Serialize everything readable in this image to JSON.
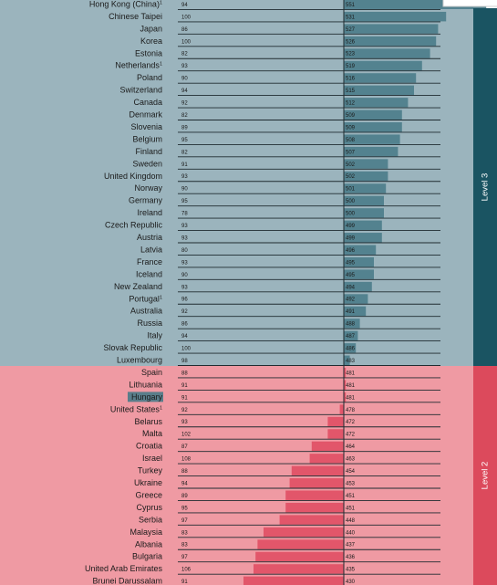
{
  "chart_data": {
    "type": "bar",
    "title": "",
    "xlabel": "",
    "ylabel": "",
    "baseline": 480,
    "levels": [
      {
        "name": "Level 3",
        "color": "#1a5462",
        "rows_bg": "#9bb4bd"
      },
      {
        "name": "Level 2",
        "color": "#dc4a5c",
        "rows_bg": "#ef9aa3"
      }
    ],
    "highlight": "Hungary",
    "rows": [
      {
        "country": "Hong Kong (China)",
        "sup": "1",
        "coverage": 94,
        "score": 551,
        "level": 0
      },
      {
        "country": "Chinese Taipei",
        "sup": "",
        "coverage": 100,
        "score": 531,
        "level": 0
      },
      {
        "country": "Japan",
        "sup": "",
        "coverage": 86,
        "score": 527,
        "level": 0
      },
      {
        "country": "Korea",
        "sup": "",
        "coverage": 100,
        "score": 526,
        "level": 0
      },
      {
        "country": "Estonia",
        "sup": "",
        "coverage": 82,
        "score": 523,
        "level": 0
      },
      {
        "country": "Netherlands",
        "sup": "1",
        "coverage": 93,
        "score": 519,
        "level": 0
      },
      {
        "country": "Poland",
        "sup": "",
        "coverage": 90,
        "score": 516,
        "level": 0
      },
      {
        "country": "Switzerland",
        "sup": "",
        "coverage": 94,
        "score": 515,
        "level": 0
      },
      {
        "country": "Canada",
        "sup": "",
        "coverage": 92,
        "score": 512,
        "level": 0
      },
      {
        "country": "Denmark",
        "sup": "",
        "coverage": 82,
        "score": 509,
        "level": 0
      },
      {
        "country": "Slovenia",
        "sup": "",
        "coverage": 89,
        "score": 509,
        "level": 0
      },
      {
        "country": "Belgium",
        "sup": "",
        "coverage": 95,
        "score": 508,
        "level": 0
      },
      {
        "country": "Finland",
        "sup": "",
        "coverage": 82,
        "score": 507,
        "level": 0
      },
      {
        "country": "Sweden",
        "sup": "",
        "coverage": 91,
        "score": 502,
        "level": 0
      },
      {
        "country": "United Kingdom",
        "sup": "",
        "coverage": 93,
        "score": 502,
        "level": 0
      },
      {
        "country": "Norway",
        "sup": "",
        "coverage": 90,
        "score": 501,
        "level": 0
      },
      {
        "country": "Germany",
        "sup": "",
        "coverage": 95,
        "score": 500,
        "level": 0
      },
      {
        "country": "Ireland",
        "sup": "",
        "coverage": 78,
        "score": 500,
        "level": 0
      },
      {
        "country": "Czech Republic",
        "sup": "",
        "coverage": 93,
        "score": 499,
        "level": 0
      },
      {
        "country": "Austria",
        "sup": "",
        "coverage": 93,
        "score": 499,
        "level": 0
      },
      {
        "country": "Latvia",
        "sup": "",
        "coverage": 80,
        "score": 496,
        "level": 0
      },
      {
        "country": "France",
        "sup": "",
        "coverage": 93,
        "score": 495,
        "level": 0
      },
      {
        "country": "Iceland",
        "sup": "",
        "coverage": 90,
        "score": 495,
        "level": 0
      },
      {
        "country": "New Zealand",
        "sup": "",
        "coverage": 93,
        "score": 494,
        "level": 0
      },
      {
        "country": "Portugal",
        "sup": "1",
        "coverage": 96,
        "score": 492,
        "level": 0
      },
      {
        "country": "Australia",
        "sup": "",
        "coverage": 92,
        "score": 491,
        "level": 0
      },
      {
        "country": "Russia",
        "sup": "",
        "coverage": 86,
        "score": 488,
        "level": 0
      },
      {
        "country": "Italy",
        "sup": "",
        "coverage": 94,
        "score": 487,
        "level": 0
      },
      {
        "country": "Slovak Republic",
        "sup": "",
        "coverage": 100,
        "score": 486,
        "level": 0
      },
      {
        "country": "Luxembourg",
        "sup": "",
        "coverage": 98,
        "score": 483,
        "level": 0
      },
      {
        "country": "Spain",
        "sup": "",
        "coverage": 88,
        "score": 481,
        "level": 1
      },
      {
        "country": "Lithuania",
        "sup": "",
        "coverage": 91,
        "score": 481,
        "level": 1
      },
      {
        "country": "Hungary",
        "sup": "",
        "coverage": 91,
        "score": 481,
        "level": 1
      },
      {
        "country": "United States",
        "sup": "1",
        "coverage": 92,
        "score": 478,
        "level": 1
      },
      {
        "country": "Belarus",
        "sup": "",
        "coverage": 93,
        "score": 472,
        "level": 1
      },
      {
        "country": "Malta",
        "sup": "",
        "coverage": 102,
        "score": 472,
        "level": 1
      },
      {
        "country": "Croatia",
        "sup": "",
        "coverage": 87,
        "score": 464,
        "level": 1
      },
      {
        "country": "Israel",
        "sup": "",
        "coverage": 108,
        "score": 463,
        "level": 1
      },
      {
        "country": "Turkey",
        "sup": "",
        "coverage": 88,
        "score": 454,
        "level": 1
      },
      {
        "country": "Ukraine",
        "sup": "",
        "coverage": 94,
        "score": 453,
        "level": 1
      },
      {
        "country": "Greece",
        "sup": "",
        "coverage": 89,
        "score": 451,
        "level": 1
      },
      {
        "country": "Cyprus",
        "sup": "",
        "coverage": 95,
        "score": 451,
        "level": 1
      },
      {
        "country": "Serbia",
        "sup": "",
        "coverage": 97,
        "score": 448,
        "level": 1
      },
      {
        "country": "Malaysia",
        "sup": "",
        "coverage": 83,
        "score": 440,
        "level": 1
      },
      {
        "country": "Albania",
        "sup": "",
        "coverage": 83,
        "score": 437,
        "level": 1
      },
      {
        "country": "Bulgaria",
        "sup": "",
        "coverage": 97,
        "score": 436,
        "level": 1
      },
      {
        "country": "United Arab Emirates",
        "sup": "",
        "coverage": 106,
        "score": 435,
        "level": 1
      },
      {
        "country": "Brunei Darussalam",
        "sup": "",
        "coverage": 91,
        "score": 430,
        "level": 1
      }
    ]
  }
}
